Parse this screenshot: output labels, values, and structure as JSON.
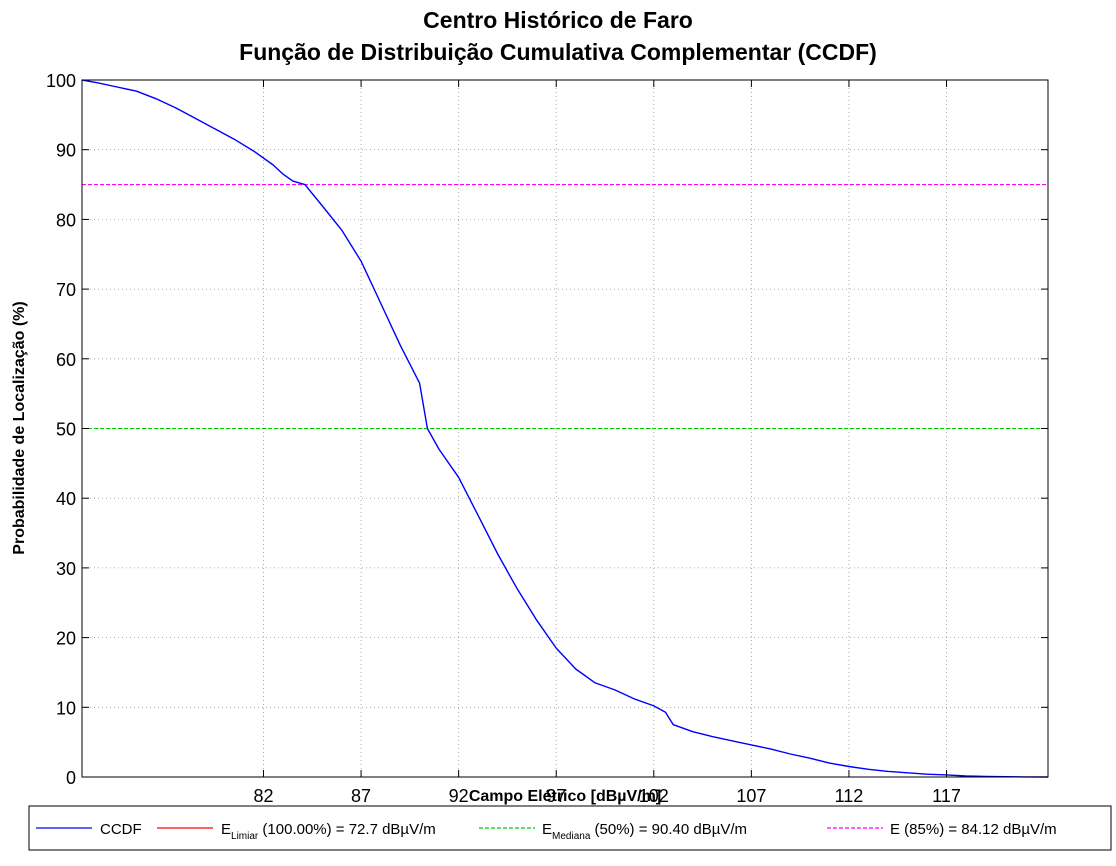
{
  "chart_data": {
    "type": "line",
    "title": "Centro Histórico de Faro",
    "subtitle": "Função de Distribuição Cumulativa Complementar (CCDF)",
    "xlabel": "Campo Elétrico [dBµV/m]",
    "ylabel": "Probabilidade de Localização (%)",
    "xlim": [
      72.7,
      122.2
    ],
    "ylim": [
      0,
      100
    ],
    "xticks": [
      82,
      87,
      92,
      97,
      102,
      107,
      112,
      117
    ],
    "yticks": [
      0,
      10,
      20,
      30,
      40,
      50,
      60,
      70,
      80,
      90,
      100
    ],
    "grid": true,
    "legend_position": "bottom",
    "series": [
      {
        "name": "CCDF",
        "color": "#0000ff",
        "style": "solid",
        "x": [
          72.7,
          73.5,
          74.5,
          75.5,
          76.5,
          77.5,
          78.5,
          79.5,
          80.5,
          81.5,
          82.5,
          83.0,
          83.5,
          84.12,
          85.0,
          86.0,
          87.0,
          88.0,
          89.0,
          90.0,
          90.4,
          91.0,
          92.0,
          93.0,
          94.0,
          95.0,
          96.0,
          97.0,
          98.0,
          99.0,
          100.0,
          101.0,
          102.0,
          102.6,
          103.0,
          104.0,
          105.0,
          106.0,
          107.0,
          108.0,
          109.0,
          110.0,
          111.0,
          112.0,
          113.0,
          114.0,
          115.0,
          116.0,
          117.0,
          118.0,
          119.0,
          120.0,
          121.0,
          122.2
        ],
        "y": [
          100,
          99.6,
          99.0,
          98.4,
          97.3,
          96.0,
          94.5,
          93.0,
          91.5,
          89.8,
          87.8,
          86.5,
          85.5,
          85.0,
          82.0,
          78.5,
          74.0,
          68.0,
          62.0,
          56.5,
          50.0,
          47.0,
          43.0,
          37.5,
          32.0,
          27.0,
          22.5,
          18.5,
          15.5,
          13.5,
          12.5,
          11.2,
          10.2,
          9.3,
          7.5,
          6.5,
          5.8,
          5.2,
          4.6,
          4.0,
          3.3,
          2.7,
          2.0,
          1.5,
          1.1,
          0.8,
          0.6,
          0.4,
          0.3,
          0.15,
          0.08,
          0.05,
          0.02,
          0.0
        ]
      },
      {
        "name": "E",
        "subscript": "Limiar",
        "suffix": " (100.00%) = 72.7 dBµV/m",
        "color": "#ff0000",
        "style": "solid",
        "x": [
          72.7,
          122.2
        ],
        "y": [
          100,
          100
        ]
      },
      {
        "name": "E",
        "subscript": "Mediana",
        "suffix": " (50%) =  90.40 dBµV/m",
        "color": "#00cc00",
        "style": "dashed",
        "x": [
          72.7,
          122.2
        ],
        "y": [
          50,
          50
        ]
      },
      {
        "name": "E",
        "subscript": "",
        "suffix": " (85%) =  84.12 dBµV/m",
        "color": "#ff00ff",
        "style": "dashed",
        "x": [
          72.7,
          122.2
        ],
        "y": [
          85,
          85
        ]
      }
    ]
  }
}
